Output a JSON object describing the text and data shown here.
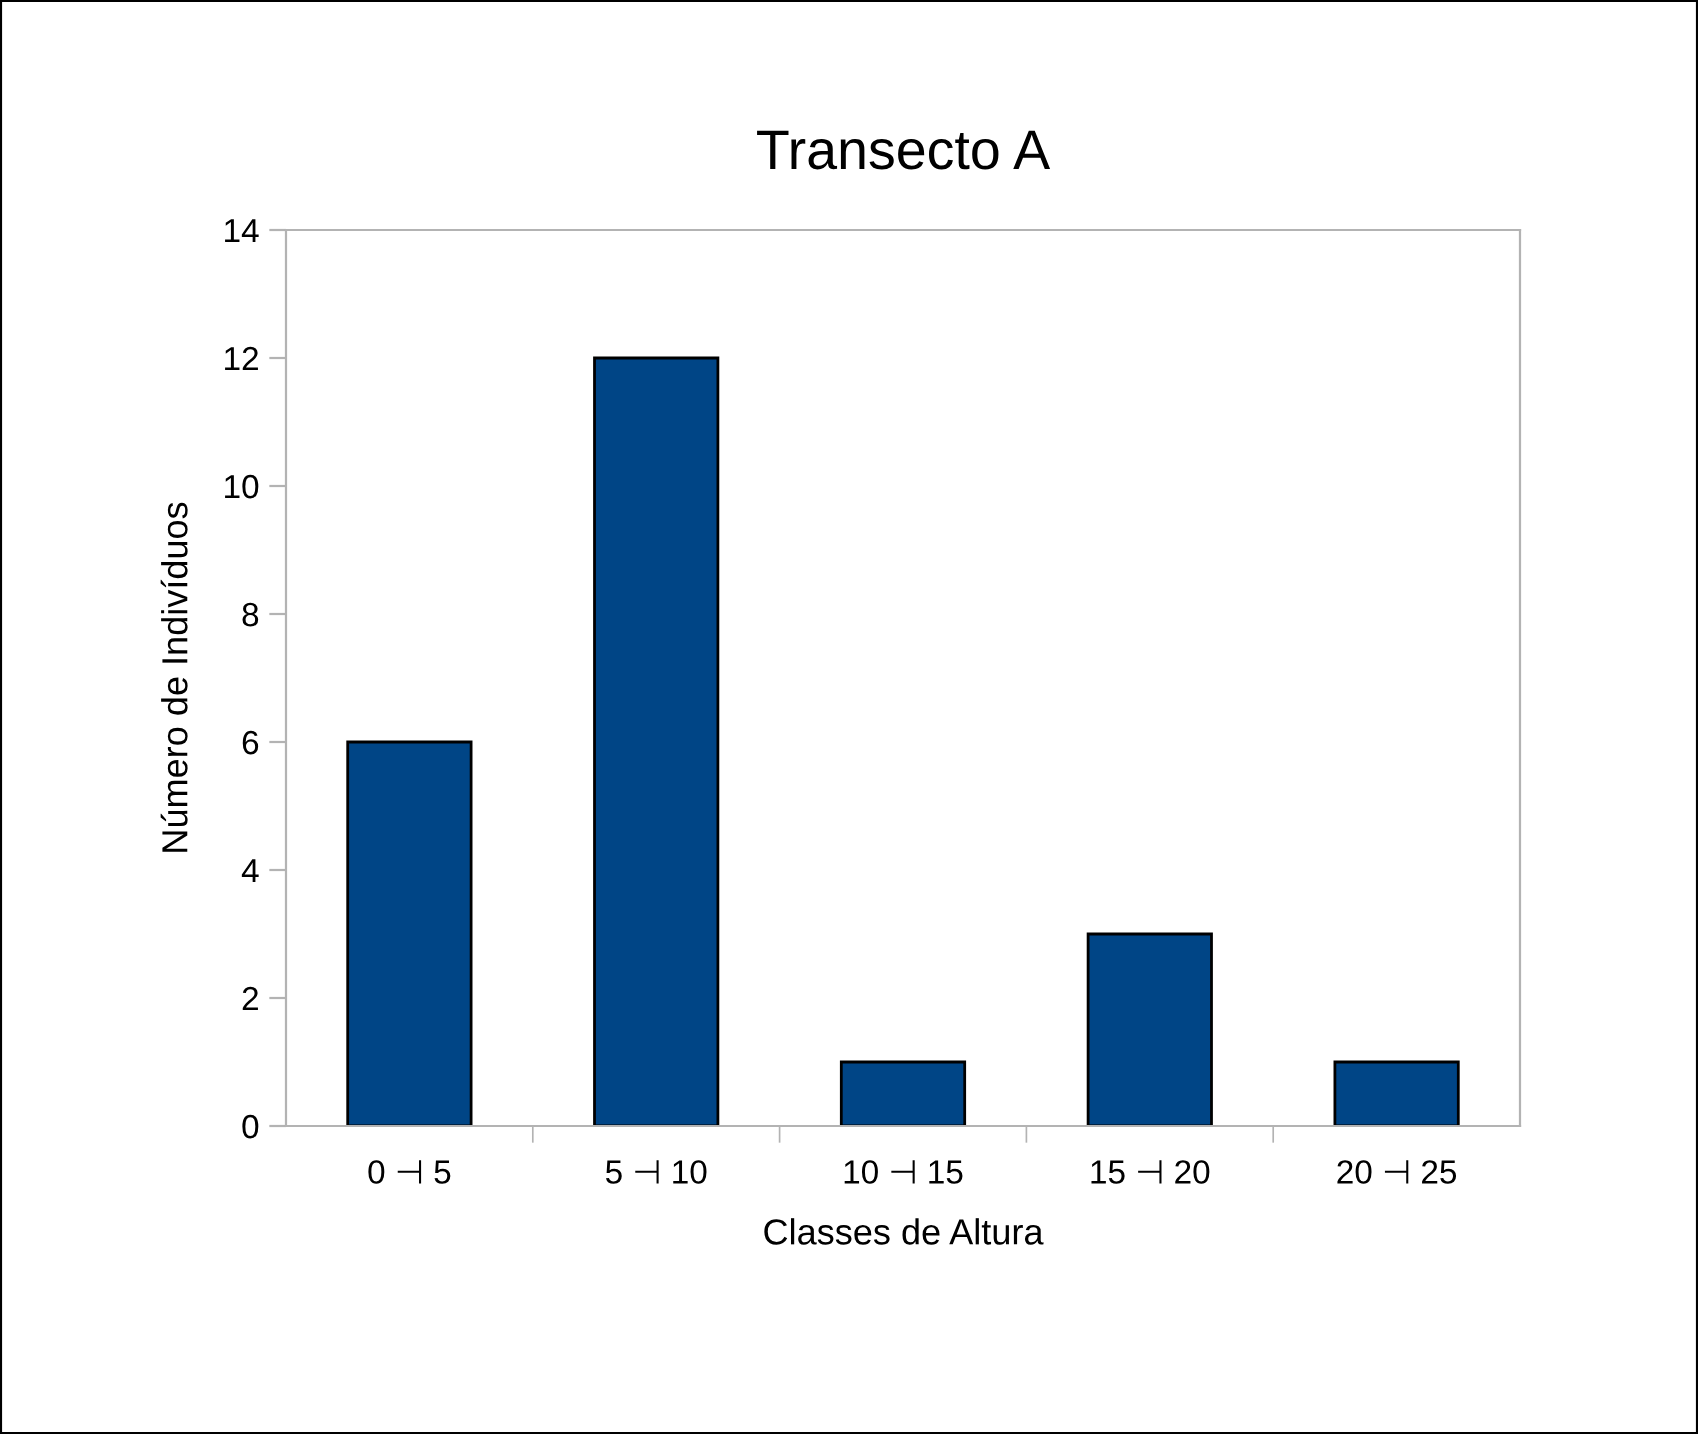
{
  "chart_data": {
    "type": "bar",
    "title": "Transecto A",
    "xlabel": "Classes de Altura",
    "ylabel": "Número de Indivíduos",
    "categories": [
      "0 ⊣ 5",
      "5 ⊣ 10",
      "10 ⊣ 15",
      "15 ⊣ 20",
      "20 ⊣ 25"
    ],
    "values": [
      6,
      12,
      1,
      3,
      1
    ],
    "color": "#004586",
    "ylim": [
      0,
      14
    ],
    "yticks": [
      0,
      2,
      4,
      6,
      8,
      10,
      12,
      14
    ],
    "grid": false,
    "legend": false
  }
}
